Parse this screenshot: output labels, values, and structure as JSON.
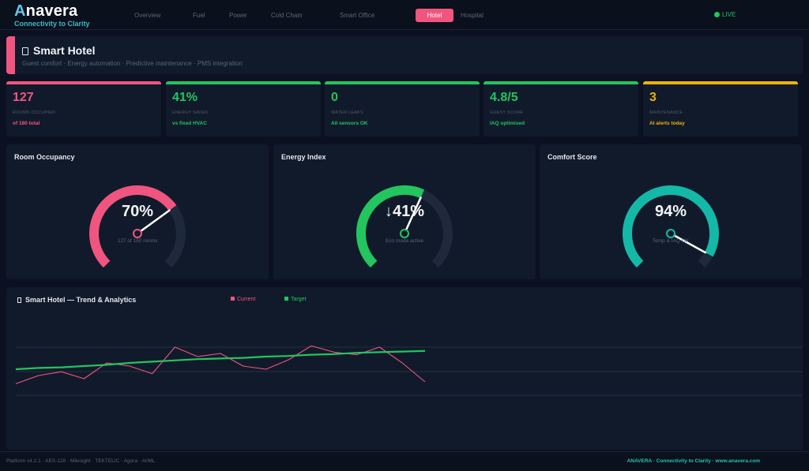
{
  "brand": {
    "name_rest": "navera",
    "name_first": "A",
    "tagline": "Connectivity to Clarity"
  },
  "nav": {
    "items": [
      {
        "label": "Overview",
        "active": false
      },
      {
        "label": "Fuel",
        "active": false
      },
      {
        "label": "Power",
        "active": false
      },
      {
        "label": "Cold Chain",
        "active": false
      },
      {
        "label": "Smart Office",
        "active": false
      },
      {
        "label": "Hotel",
        "active": true
      },
      {
        "label": "Hospital",
        "active": false
      }
    ],
    "live_label": "LIVE"
  },
  "header": {
    "title": "Smart Hotel",
    "subtitle": "Guest comfort · Energy automation · Predictive maintenance · PMS integration",
    "icon": "tablet-icon",
    "accent_color": "#f0557f"
  },
  "kpis": [
    {
      "value": "127",
      "label": "ROOMS OCCUPIED",
      "note": "of 180 total",
      "color": "#f0557f"
    },
    {
      "value": "41%",
      "label": "ENERGY SAVED",
      "note": "vs fixed HVAC",
      "color": "#22c55e"
    },
    {
      "value": "0",
      "label": "WATER LEAKS",
      "note": "All sensors OK",
      "color": "#22c55e"
    },
    {
      "value": "4.8/5",
      "label": "GUEST SCORE",
      "note": "IAQ optimised",
      "color": "#22c55e"
    },
    {
      "value": "3",
      "label": "MAINTENANCE",
      "note": "AI alerts today",
      "color": "#eab308"
    }
  ],
  "gauges": [
    {
      "title": "Room Occupancy",
      "value_text": "70%",
      "fraction": 0.7,
      "sub": "127 of 180 rooms",
      "color": "#f0557f"
    },
    {
      "title": "Energy Index",
      "value_text": "↓41%",
      "fraction": 0.59,
      "sub": "Eco mode active",
      "color": "#22c55e"
    },
    {
      "title": "Comfort Score",
      "value_text": "94%",
      "fraction": 0.94,
      "sub": "Temp & IAQ OK",
      "color": "#14b8a6"
    }
  ],
  "trend": {
    "title": "Smart Hotel — Trend & Analytics",
    "icon": "sq-icon",
    "legend": [
      {
        "label": "Current",
        "color": "#f0557f"
      },
      {
        "label": "Target",
        "color": "#22c55e"
      }
    ]
  },
  "chart_data": {
    "type": "line",
    "title": "Smart Hotel — Trend & Analytics",
    "x": [
      0,
      1,
      2,
      3,
      4,
      5,
      6,
      7,
      8,
      9,
      10,
      11,
      12,
      13,
      14,
      15,
      16,
      17,
      18
    ],
    "series": [
      {
        "name": "Current",
        "color": "#f0557f",
        "values": [
          0.22,
          0.35,
          0.41,
          0.3,
          0.55,
          0.5,
          0.38,
          0.8,
          0.65,
          0.7,
          0.5,
          0.45,
          0.6,
          0.82,
          0.72,
          0.68,
          0.8,
          0.55,
          0.25
        ]
      },
      {
        "name": "Target",
        "color": "#22c55e",
        "values": [
          0.45,
          0.47,
          0.48,
          0.5,
          0.52,
          0.55,
          0.57,
          0.59,
          0.61,
          0.62,
          0.63,
          0.65,
          0.66,
          0.68,
          0.69,
          0.71,
          0.72,
          0.73,
          0.74
        ]
      }
    ],
    "grid": true
  },
  "footer": {
    "left": "Platform v4.2.1 · AES-128 · Milesight · TEKTELIC · Agora · AI/ML",
    "right": "ANAVERA · Connectivity to Clarity · www.anavera.com"
  },
  "colors": {
    "background": "#0b1120",
    "panel": "#111a2b",
    "track": "#1e293b"
  }
}
